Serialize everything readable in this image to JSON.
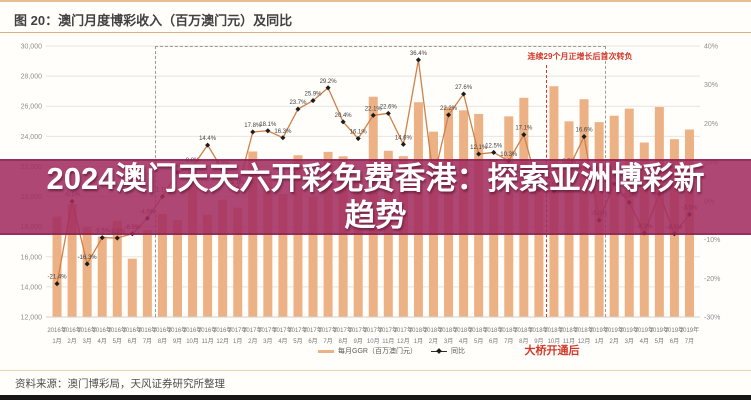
{
  "title": "图 20：澳门月度博彩收入（百万澳门元）及同比",
  "overlay": {
    "text": "2024澳门天天六开彩免费香港：探索亚洲博彩新趋势"
  },
  "annotations": {
    "growth_box_label": "连续29个月正增长后首次转负",
    "bridge_label": "大桥开通后"
  },
  "legend": [
    {
      "label": "每月GGR（百万澳门元）",
      "type": "bar"
    },
    {
      "label": "同比",
      "type": "line"
    }
  ],
  "source": "资料来源：澳门博彩局，天风证券研究所整理",
  "colors": {
    "bar": "#ecb286",
    "line": "#d08048",
    "marker": "#1c1c1c",
    "grid": "#e8e4de",
    "axis_label": "#8f8f8f",
    "x_label": "#787878",
    "point_label": "#404040",
    "red_accent": "#d03a2b",
    "banner_bg": "#a22c5f",
    "title_rule": "#dfae7d"
  },
  "chart_data": {
    "type": "bar",
    "title": "澳门月度博彩收入（百万澳门元）及同比",
    "categories": [
      "2016年1月",
      "2016年2月",
      "2016年3月",
      "2016年4月",
      "2016年5月",
      "2016年6月",
      "2016年7月",
      "2016年8月",
      "2016年9月",
      "2016年10月",
      "2016年11月",
      "2016年12月",
      "2017年1月",
      "2017年2月",
      "2017年3月",
      "2017年4月",
      "2017年5月",
      "2017年6月",
      "2017年7月",
      "2017年8月",
      "2017年9月",
      "2017年10月",
      "2017年11月",
      "2017年12月",
      "2018年1月",
      "2018年2月",
      "2018年3月",
      "2018年4月",
      "2018年5月",
      "2018年6月",
      "2018年7月",
      "2018年8月",
      "2018年9月",
      "2018年10月",
      "2018年11月",
      "2018年12月",
      "2019年1月",
      "2019年2月",
      "2019年3月",
      "2019年4月",
      "2019年5月",
      "2019年6月",
      "2019年7月"
    ],
    "series": [
      {
        "name": "每月GGR（百万澳门元）",
        "type": "bar",
        "axis": "left",
        "values": [
          18674,
          19519,
          17980,
          17340,
          18389,
          15877,
          17771,
          18838,
          18431,
          21807,
          18789,
          19789,
          19255,
          22992,
          21233,
          20164,
          22744,
          19992,
          22968,
          22675,
          21408,
          26630,
          23038,
          22684,
          26265,
          24312,
          25952,
          25727,
          25488,
          22490,
          25327,
          26559,
          21952,
          27328,
          24995,
          26468,
          24942,
          25370,
          25840,
          23588,
          25952,
          23812,
          24453
        ]
      },
      {
        "name": "同比",
        "type": "line",
        "axis": "right",
        "unit": "%",
        "values": [
          -21.4,
          -0.1,
          -16.3,
          -9.5,
          -9.6,
          -8.5,
          -4.5,
          1.1,
          7.4,
          8.8,
          14.4,
          8.0,
          3.1,
          17.8,
          18.1,
          16.3,
          23.7,
          25.9,
          29.2,
          20.4,
          16.1,
          22.1,
          22.6,
          14.6,
          36.4,
          5.7,
          22.2,
          27.6,
          12.1,
          12.5,
          10.3,
          17.1,
          2.8,
          2.6,
          8.5,
          16.6,
          -5.0,
          4.4,
          -0.4,
          -8.3,
          1.8,
          -8.5,
          -3.5
        ]
      }
    ],
    "left_axis": {
      "min": 12000,
      "max": 30000,
      "ticks": [
        30000,
        28000,
        26000,
        24000,
        22000,
        20000,
        18000,
        16000,
        14000,
        12000
      ]
    },
    "right_axis": {
      "min": -30,
      "max": 40,
      "ticks": [
        40,
        30,
        20,
        10,
        0,
        -10,
        -20,
        -30
      ],
      "unit": "%"
    },
    "grid": true,
    "legend_position": "bottom"
  }
}
